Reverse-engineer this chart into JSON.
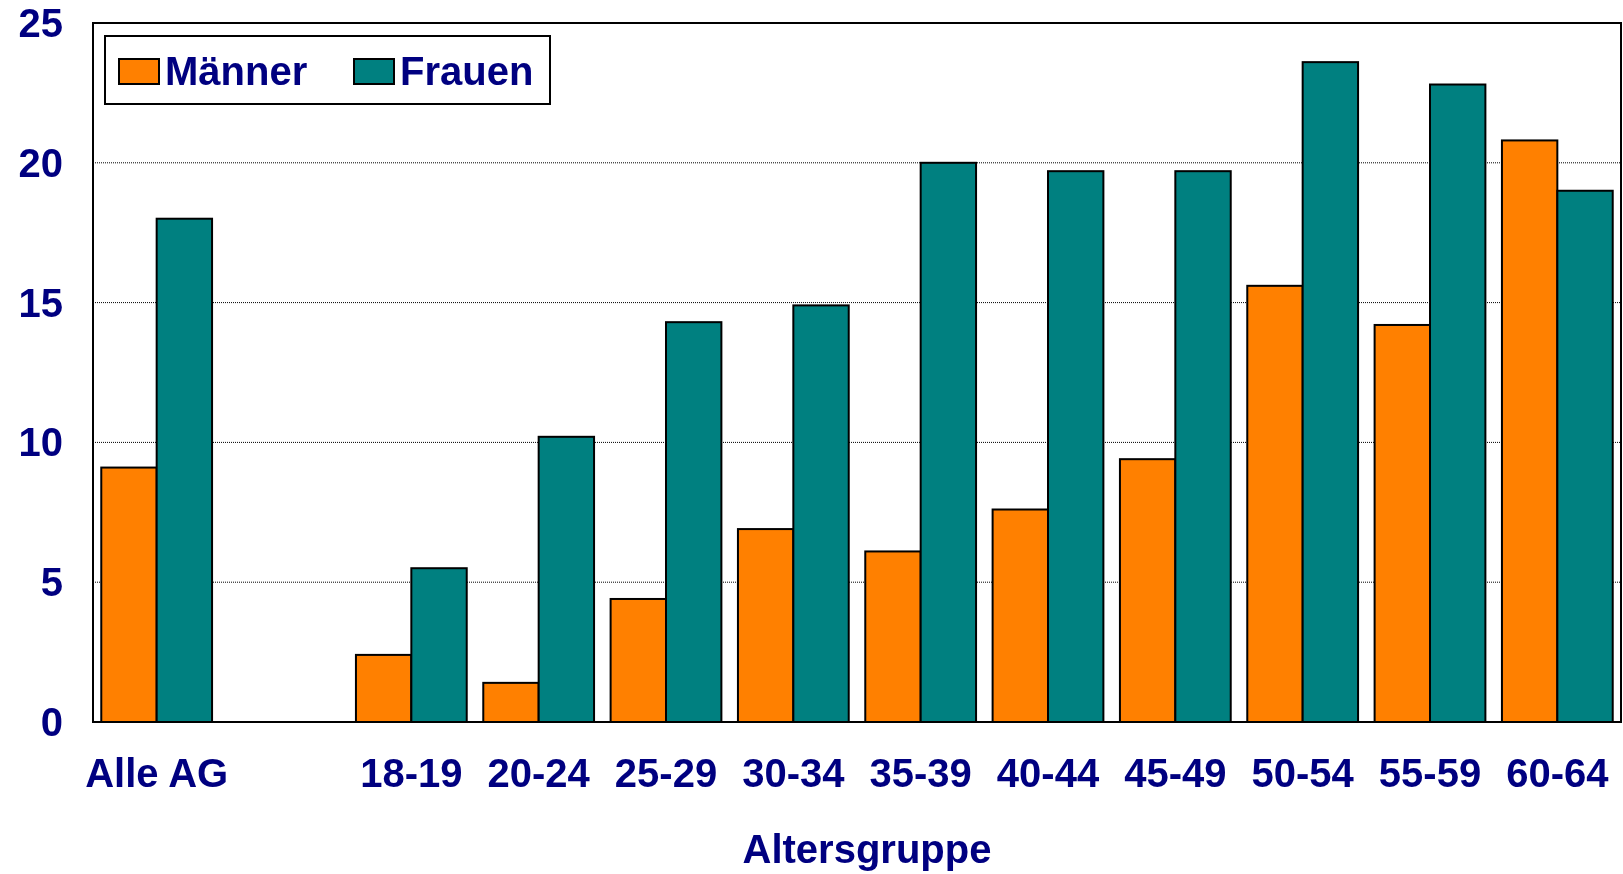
{
  "chart_data": {
    "type": "bar",
    "xlabel": "Altersgruppe",
    "categories": [
      "Alle AG",
      null,
      "18-19",
      "20-24",
      "25-29",
      "30-34",
      "35-39",
      "40-44",
      "45-49",
      "50-54",
      "55-59",
      "60-64"
    ],
    "series": [
      {
        "name": "Männer",
        "color": "#ff8000",
        "values": [
          9.1,
          null,
          2.4,
          1.4,
          4.4,
          6.9,
          6.1,
          7.6,
          9.4,
          15.6,
          14.2,
          20.8
        ]
      },
      {
        "name": "Frauen",
        "color": "#008080",
        "values": [
          18.0,
          null,
          5.5,
          10.2,
          14.3,
          14.9,
          20.0,
          19.7,
          19.7,
          23.6,
          22.8,
          19.0
        ]
      }
    ],
    "ylim": [
      0,
      25
    ],
    "yticks": [
      0,
      5,
      10,
      15,
      20,
      25
    ],
    "grid": "y",
    "legend": "top left"
  }
}
